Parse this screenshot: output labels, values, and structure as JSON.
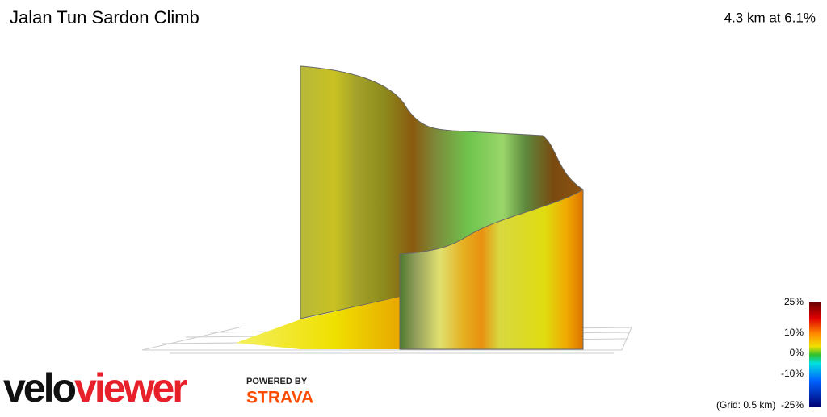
{
  "header": {
    "title": "Jalan Tun Sardon Climb",
    "summary": "4.3 km at 6.1%"
  },
  "legend": {
    "ticks": [
      "25%",
      "10%",
      "0%",
      "-10%",
      "-25%"
    ],
    "grid_note": "(Grid: 0.5 km)"
  },
  "branding": {
    "logo_start": "velo",
    "logo_end": "viewer",
    "powered_by": "POWERED BY",
    "partner": "STRAVA"
  }
}
